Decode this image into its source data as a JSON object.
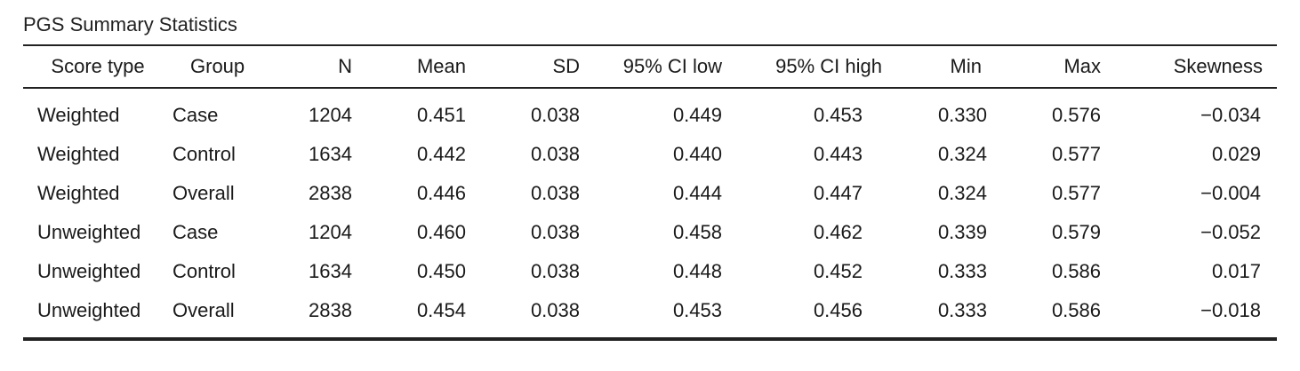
{
  "table": {
    "title": "PGS Summary Statistics",
    "headers": [
      "Score type",
      "Group",
      "N",
      "Mean",
      "SD",
      "95% CI low",
      "95% CI high",
      "Min",
      "Max",
      "Skewness"
    ],
    "rows": [
      [
        "Weighted",
        "Case",
        "1204",
        "0.451",
        "0.038",
        "0.449",
        "0.453",
        "0.330",
        "0.576",
        "−0.034"
      ],
      [
        "Weighted",
        "Control",
        "1634",
        "0.442",
        "0.038",
        "0.440",
        "0.443",
        "0.324",
        "0.577",
        "0.029"
      ],
      [
        "Weighted",
        "Overall",
        "2838",
        "0.446",
        "0.038",
        "0.444",
        "0.447",
        "0.324",
        "0.577",
        "−0.004"
      ],
      [
        "Unweighted",
        "Case",
        "1204",
        "0.460",
        "0.038",
        "0.458",
        "0.462",
        "0.339",
        "0.579",
        "−0.052"
      ],
      [
        "Unweighted",
        "Control",
        "1634",
        "0.450",
        "0.038",
        "0.448",
        "0.452",
        "0.333",
        "0.586",
        "0.017"
      ],
      [
        "Unweighted",
        "Overall",
        "2838",
        "0.454",
        "0.038",
        "0.453",
        "0.456",
        "0.333",
        "0.586",
        "−0.018"
      ]
    ]
  }
}
